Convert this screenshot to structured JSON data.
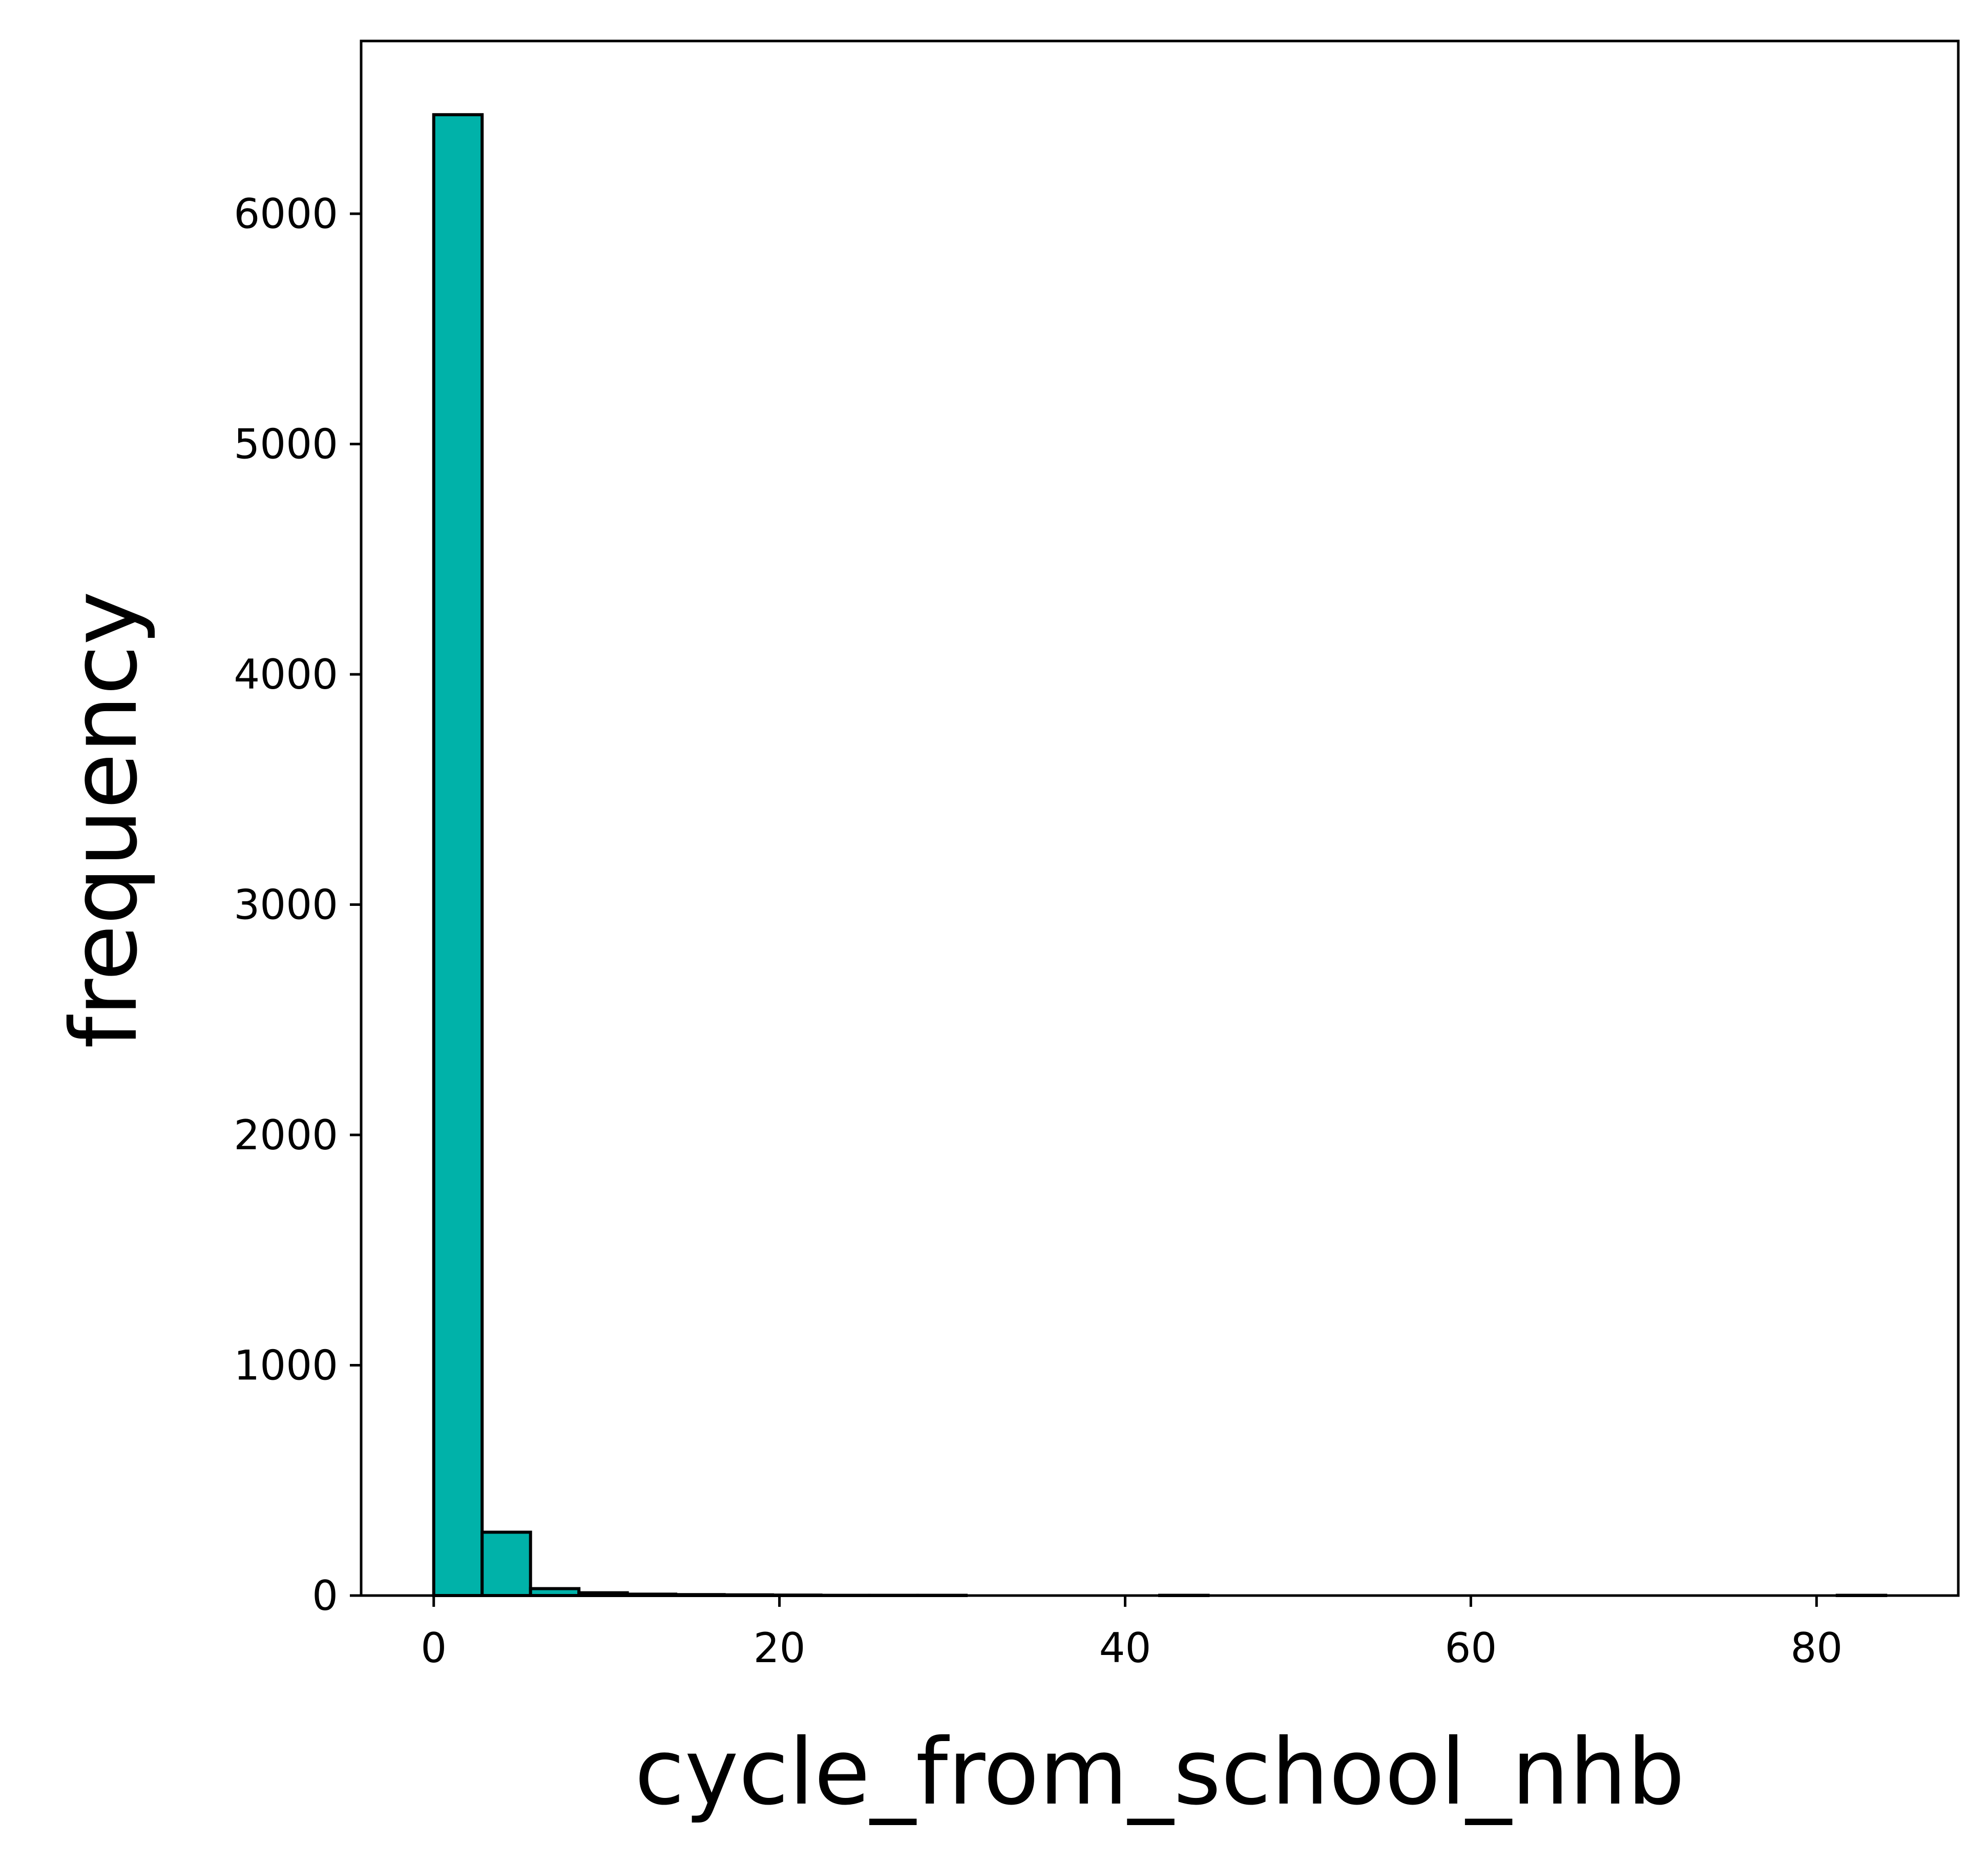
{
  "chart_data": {
    "type": "bar",
    "title": "",
    "xlabel": "cycle_from_school_nhb",
    "ylabel": "frequency",
    "bar_color": "#00b2a9",
    "edge_color": "#000000",
    "bin_edges": [
      0,
      2.8,
      5.6,
      8.4,
      11.2,
      14,
      16.8,
      19.6,
      22.4,
      25.2,
      28,
      30.8,
      33.6,
      36.4,
      39.2,
      42,
      44.8,
      47.6,
      50.4,
      53.2,
      56,
      58.8,
      61.6,
      64.4,
      67.2,
      70,
      72.8,
      75.6,
      78.4,
      81.2,
      84
    ],
    "values": [
      6430,
      275,
      30,
      12,
      6,
      4,
      3,
      2,
      1,
      1,
      1,
      0,
      0,
      0,
      0,
      1,
      0,
      0,
      0,
      0,
      0,
      0,
      0,
      0,
      0,
      0,
      0,
      0,
      0,
      1
    ],
    "xlim": [
      -4.2,
      88.2
    ],
    "ylim": [
      0,
      6750
    ],
    "xticks": [
      0,
      20,
      40,
      60,
      80
    ],
    "xtick_labels": [
      "0",
      "20",
      "40",
      "60",
      "80"
    ],
    "yticks": [
      0,
      1000,
      2000,
      3000,
      4000,
      5000,
      6000
    ],
    "ytick_labels": [
      "0",
      "1000",
      "2000",
      "3000",
      "4000",
      "5000",
      "6000"
    ],
    "grid": false,
    "legend": "none"
  }
}
